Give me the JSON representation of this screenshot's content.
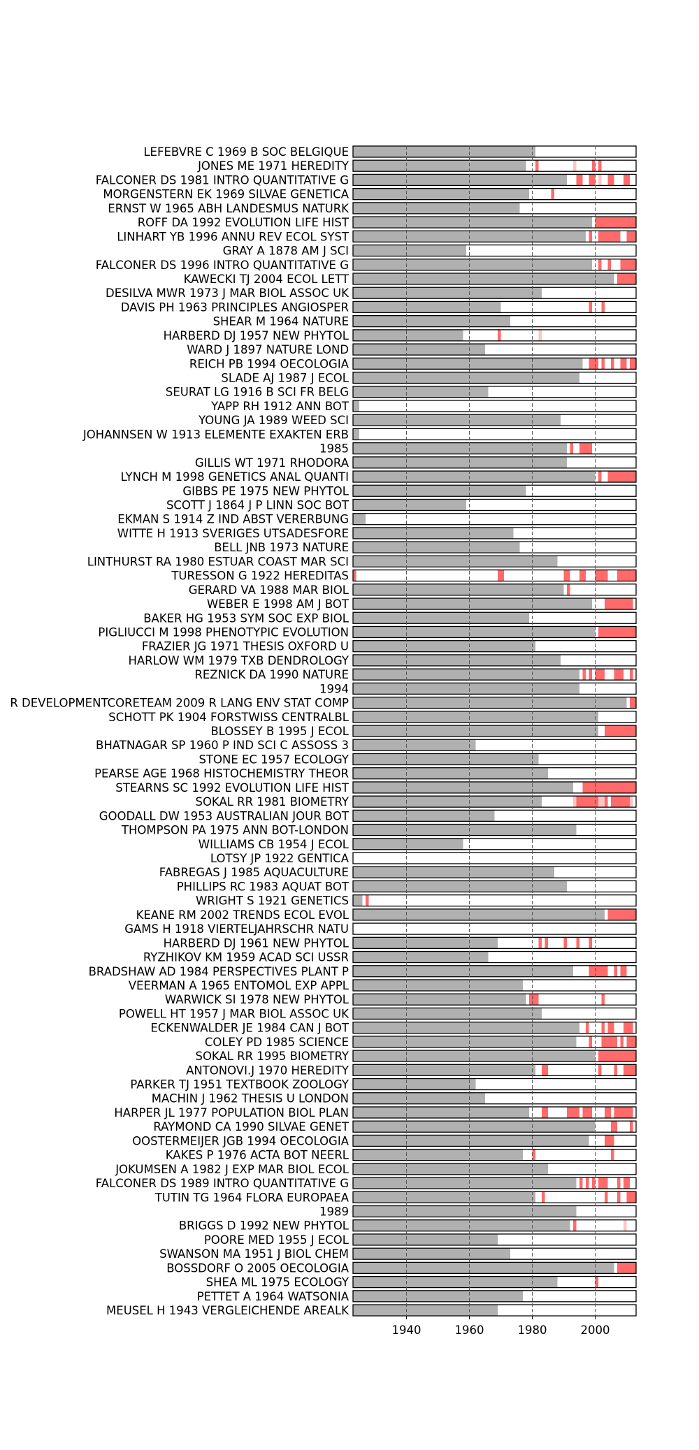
{
  "chart_data": {
    "type": "bar",
    "xlim": [
      1923,
      2013
    ],
    "x_ticks": [
      1940,
      1960,
      1980,
      2000
    ],
    "x_tick_labels": [
      "1940",
      "1960",
      "1980",
      "2000"
    ],
    "colors": {
      "span": "#b0b0b0",
      "burst_strong": "#ff6a6a",
      "burst_faint": "#ffc4c4",
      "frame": "#000000",
      "gridline": "#555555"
    },
    "rows": [
      {
        "label": "LEFEBVRE C 1969 B SOC BELGIQUE",
        "span_end": 1981,
        "strong": [],
        "faint": []
      },
      {
        "label": "JONES ME 1971 HEREDITY",
        "span_end": 1978,
        "strong": [
          [
            1981,
            1982
          ],
          [
            1999,
            2000
          ],
          [
            2001,
            2002
          ]
        ],
        "faint": [
          [
            1993,
            1994
          ]
        ]
      },
      {
        "label": "FALCONER DS 1981 INTRO QUANTITATIVE G",
        "span_end": 1991,
        "strong": [
          [
            1994,
            1996
          ],
          [
            1998,
            2000
          ],
          [
            2004,
            2006
          ],
          [
            2009,
            2011
          ]
        ],
        "faint": [
          [
            2001,
            2002
          ]
        ]
      },
      {
        "label": "MORGENSTERN EK 1969 SILVAE GENETICA",
        "span_end": 1979,
        "strong": [
          [
            1986,
            1987
          ]
        ],
        "faint": []
      },
      {
        "label": "ERNST W 1965 ABH LANDESMUS NATURK",
        "span_end": 1976,
        "strong": [],
        "faint": []
      },
      {
        "label": "ROFF DA 1992 EVOLUTION LIFE HIST",
        "span_end": 1999,
        "strong": [
          [
            2000,
            2013
          ]
        ],
        "faint": []
      },
      {
        "label": "LINHART YB 1996 ANNU REV ECOL SYST",
        "span_end": 1997,
        "strong": [
          [
            1998,
            1999
          ],
          [
            2001,
            2008
          ],
          [
            2010,
            2013
          ]
        ],
        "faint": []
      },
      {
        "label": "GRAY A 1878 AM J SCI",
        "span_end": 1959,
        "strong": [],
        "faint": []
      },
      {
        "label": "FALCONER DS 1996 INTRO QUANTITATIVE G",
        "span_end": 1999,
        "strong": [
          [
            2001,
            2002
          ],
          [
            2004,
            2005
          ],
          [
            2008,
            2013
          ]
        ],
        "faint": []
      },
      {
        "label": "KAWECKI TJ 2004 ECOL LETT",
        "span_end": 2006,
        "strong": [
          [
            2007,
            2013
          ]
        ],
        "faint": []
      },
      {
        "label": "DESILVA MWR 1973 J MAR BIOL ASSOC UK",
        "span_end": 1983,
        "strong": [],
        "faint": []
      },
      {
        "label": "DAVIS PH 1963 PRINCIPLES ANGIOSPER",
        "span_end": 1970,
        "strong": [
          [
            1998,
            1999
          ],
          [
            2002,
            2003
          ]
        ],
        "faint": []
      },
      {
        "label": "SHEAR M 1964 NATURE",
        "span_end": 1973,
        "strong": [],
        "faint": []
      },
      {
        "label": "HARBERD DJ 1957 NEW PHYTOL",
        "span_end": 1958,
        "strong": [
          [
            1969,
            1970
          ]
        ],
        "faint": [
          [
            1982,
            1983
          ]
        ]
      },
      {
        "label": "WARD J 1897 NATURE LOND",
        "span_end": 1965,
        "strong": [],
        "faint": []
      },
      {
        "label": "REICH PB 1994 OECOLOGIA",
        "span_end": 1996,
        "strong": [
          [
            1998,
            2001
          ],
          [
            2002,
            2003
          ],
          [
            2005,
            2006
          ],
          [
            2008,
            2010
          ],
          [
            2011,
            2013
          ]
        ],
        "faint": []
      },
      {
        "label": "SLADE AJ 1987 J ECOL",
        "span_end": 1995,
        "strong": [],
        "faint": []
      },
      {
        "label": "SEURAT LG 1916 B SCI FR BELG",
        "span_end": 1966,
        "strong": [],
        "faint": []
      },
      {
        "label": "YAPP RH 1912 ANN BOT",
        "span_end": 1925,
        "strong": [],
        "faint": []
      },
      {
        "label": "YOUNG JA 1989 WEED SCI",
        "span_end": 1989,
        "strong": [],
        "faint": []
      },
      {
        "label": "JOHANNSEN W 1913 ELEMENTE EXAKTEN ERB",
        "span_end": 1925,
        "strong": [],
        "faint": []
      },
      {
        "label": "1985",
        "span_end": 1991,
        "strong": [
          [
            1992,
            1993
          ],
          [
            1995,
            1999
          ]
        ],
        "faint": []
      },
      {
        "label": "GILLIS WT 1971 RHODORA",
        "span_end": 1991,
        "strong": [],
        "faint": []
      },
      {
        "label": "LYNCH M 1998 GENETICS ANAL QUANTI",
        "span_end": 2000,
        "strong": [
          [
            2001,
            2002
          ],
          [
            2004,
            2013
          ]
        ],
        "faint": []
      },
      {
        "label": "GIBBS PE 1975 NEW PHYTOL",
        "span_end": 1978,
        "strong": [],
        "faint": []
      },
      {
        "label": "SCOTT J 1864 J P LINN SOC BOT",
        "span_end": 1959,
        "strong": [],
        "faint": []
      },
      {
        "label": "EKMAN S 1914 Z IND ABST VERERBUNG",
        "span_end": 1927,
        "strong": [],
        "faint": []
      },
      {
        "label": "WITTE H 1913 SVERIGES UTSADESFORE",
        "span_end": 1974,
        "strong": [],
        "faint": []
      },
      {
        "label": "BELL JNB 1973 NATURE",
        "span_end": 1976,
        "strong": [],
        "faint": []
      },
      {
        "label": "LINTHURST RA 1980 ESTUAR COAST MAR SCI",
        "span_end": 1988,
        "strong": [],
        "faint": []
      },
      {
        "label": "TURESSON G 1922 HEREDITAS",
        "span_end": 1923,
        "strong": [
          [
            1923,
            1924
          ],
          [
            1969,
            1971
          ],
          [
            1990,
            1992
          ],
          [
            1995,
            1997
          ],
          [
            2000,
            2004
          ],
          [
            2007,
            2013
          ]
        ],
        "faint": []
      },
      {
        "label": "GERARD VA 1988 MAR BIOL",
        "span_end": 1990,
        "strong": [
          [
            1991,
            1992
          ]
        ],
        "faint": []
      },
      {
        "label": "WEBER E 1998 AM J BOT",
        "span_end": 1999,
        "strong": [
          [
            2003,
            2012
          ]
        ],
        "faint": []
      },
      {
        "label": "BAKER HG 1953 SYM SOC EXP BIOL",
        "span_end": 1979,
        "strong": [],
        "faint": []
      },
      {
        "label": "PIGLIUCCI M 1998 PHENOTYPIC EVOLUTION",
        "span_end": 2000,
        "strong": [
          [
            2001,
            2013
          ]
        ],
        "faint": []
      },
      {
        "label": "FRAZIER JG 1971 THESIS OXFORD U",
        "span_end": 1981,
        "strong": [],
        "faint": []
      },
      {
        "label": "HARLOW WM 1979 TXB DENDROLOGY",
        "span_end": 1989,
        "strong": [],
        "faint": []
      },
      {
        "label": "REZNICK DA 1990 NATURE",
        "span_end": 1995,
        "strong": [
          [
            1996,
            1997
          ],
          [
            1998,
            1999
          ],
          [
            2000,
            2003
          ],
          [
            2006,
            2009
          ],
          [
            2011,
            2012
          ]
        ],
        "faint": []
      },
      {
        "label": "1994",
        "span_end": 1995,
        "strong": [],
        "faint": []
      },
      {
        "label": "R DEVELOPMENTCORETEAM 2009 R LANG ENV STAT COMP",
        "span_end": 2010,
        "strong": [
          [
            2011,
            2013
          ]
        ],
        "faint": []
      },
      {
        "label": "SCHOTT PK 1904 FORSTWISS CENTRALBL",
        "span_end": 2001,
        "strong": [],
        "faint": []
      },
      {
        "label": "BLOSSEY B 1995 J ECOL",
        "span_end": 2001,
        "strong": [
          [
            2003,
            2013
          ]
        ],
        "faint": []
      },
      {
        "label": "BHATNAGAR SP 1960 P IND SCI C ASSOSS 3",
        "span_end": 1962,
        "strong": [],
        "faint": []
      },
      {
        "label": "STONE EC 1957 ECOLOGY",
        "span_end": 1982,
        "strong": [],
        "faint": []
      },
      {
        "label": "PEARSE AGE 1968 HISTOCHEMISTRY THEOR",
        "span_end": 1985,
        "strong": [],
        "faint": []
      },
      {
        "label": "STEARNS SC 1992 EVOLUTION LIFE HIST",
        "span_end": 1993,
        "strong": [
          [
            1996,
            2013
          ]
        ],
        "faint": []
      },
      {
        "label": "SOKAL RR 1981 BIOMETRY",
        "span_end": 1983,
        "strong": [
          [
            1994,
            2001
          ],
          [
            2003,
            2004
          ],
          [
            2005,
            2011
          ]
        ],
        "faint": [
          [
            1993,
            1994
          ],
          [
            2001,
            2003
          ],
          [
            2011,
            2012
          ]
        ]
      },
      {
        "label": "GOODALL DW 1953 AUSTRALIAN JOUR BOT",
        "span_end": 1968,
        "strong": [],
        "faint": []
      },
      {
        "label": "THOMPSON PA 1975 ANN BOT-LONDON",
        "span_end": 1994,
        "strong": [],
        "faint": []
      },
      {
        "label": "WILLIAMS CB 1954 J ECOL",
        "span_end": 1958,
        "strong": [],
        "faint": []
      },
      {
        "label": "LOTSY JP 1922 GENTICA",
        "span_end": 1923,
        "strong": [],
        "faint": []
      },
      {
        "label": "FABREGAS J 1985 AQUACULTURE",
        "span_end": 1987,
        "strong": [],
        "faint": []
      },
      {
        "label": "PHILLIPS RC 1983 AQUAT BOT",
        "span_end": 1991,
        "strong": [],
        "faint": []
      },
      {
        "label": "WRIGHT S 1921 GENETICS",
        "span_end": 1926,
        "strong": [
          [
            1927,
            1928
          ]
        ],
        "faint": []
      },
      {
        "label": "KEANE RM 2002 TRENDS ECOL EVOL",
        "span_end": 2003,
        "strong": [
          [
            2004,
            2013
          ]
        ],
        "faint": []
      },
      {
        "label": "GAMS H 1918 VIERTELJAHRSCHR NATU",
        "span_end": 1923,
        "strong": [],
        "faint": []
      },
      {
        "label": "HARBERD DJ 1961 NEW PHYTOL",
        "span_end": 1969,
        "strong": [
          [
            1982,
            1983
          ],
          [
            1984,
            1985
          ],
          [
            1990,
            1991
          ],
          [
            1994,
            1995
          ],
          [
            1998,
            1999
          ]
        ],
        "faint": []
      },
      {
        "label": "RYZHIKOV KM 1959 ACAD SCI USSR",
        "span_end": 1966,
        "strong": [],
        "faint": []
      },
      {
        "label": "BRADSHAW AD 1984 PERSPECTIVES PLANT P",
        "span_end": 1993,
        "strong": [
          [
            1998,
            2004
          ],
          [
            2006,
            2007
          ],
          [
            2008,
            2010
          ]
        ],
        "faint": []
      },
      {
        "label": "VEERMAN A 1965 ENTOMOL EXP APPL",
        "span_end": 1977,
        "strong": [],
        "faint": []
      },
      {
        "label": "WARWICK SI 1978 NEW PHYTOL",
        "span_end": 1978,
        "strong": [
          [
            1979,
            1982
          ],
          [
            2002,
            2003
          ]
        ],
        "faint": []
      },
      {
        "label": "POWELL HT 1957 J MAR BIOL ASSOC UK",
        "span_end": 1983,
        "strong": [],
        "faint": []
      },
      {
        "label": "ECKENWALDER JE 1984 CAN J BOT",
        "span_end": 1995,
        "strong": [
          [
            1997,
            1998
          ],
          [
            2002,
            2003
          ],
          [
            2004,
            2006
          ],
          [
            2009,
            2012
          ]
        ],
        "faint": []
      },
      {
        "label": "COLEY PD 1985 SCIENCE",
        "span_end": 1994,
        "strong": [
          [
            1998,
            1999
          ],
          [
            2002,
            2007
          ],
          [
            2008,
            2009
          ],
          [
            2010,
            2013
          ]
        ],
        "faint": []
      },
      {
        "label": "SOKAL RR 1995 BIOMETRY",
        "span_end": 2000,
        "strong": [
          [
            2001,
            2013
          ]
        ],
        "faint": []
      },
      {
        "label": "ANTONOVI.J   1970 HEREDITY",
        "span_end": 1981,
        "strong": [
          [
            1983,
            1985
          ],
          [
            2001,
            2002
          ],
          [
            2006,
            2007
          ],
          [
            2009,
            2013
          ]
        ],
        "faint": []
      },
      {
        "label": "PARKER TJ 1951 TEXTBOOK ZOOLOGY",
        "span_end": 1962,
        "strong": [],
        "faint": []
      },
      {
        "label": "MACHIN J 1962 THESIS U LONDON",
        "span_end": 1965,
        "strong": [],
        "faint": []
      },
      {
        "label": "HARPER JL 1977 POPULATION BIOL PLAN",
        "span_end": 1979,
        "strong": [
          [
            1983,
            1985
          ],
          [
            1991,
            1995
          ],
          [
            1996,
            1999
          ],
          [
            2003,
            2005
          ],
          [
            2006,
            2012
          ]
        ],
        "faint": []
      },
      {
        "label": "RAYMOND CA 1990 SILVAE GENET",
        "span_end": 2000,
        "strong": [
          [
            2005,
            2007
          ],
          [
            2011,
            2012
          ]
        ],
        "faint": []
      },
      {
        "label": "OOSTERMEIJER JGB 1994 OECOLOGIA",
        "span_end": 1998,
        "strong": [
          [
            2003,
            2006
          ]
        ],
        "faint": []
      },
      {
        "label": "KAKES P 1976 ACTA BOT NEERL",
        "span_end": 1977,
        "strong": [
          [
            1980,
            1981
          ],
          [
            2005,
            2006
          ]
        ],
        "faint": []
      },
      {
        "label": "JOKUMSEN A 1982 J EXP MAR BIOL ECOL",
        "span_end": 1985,
        "strong": [],
        "faint": []
      },
      {
        "label": "FALCONER DS 1989 INTRO QUANTITATIVE G",
        "span_end": 1994,
        "strong": [
          [
            1995,
            1996
          ],
          [
            1997,
            1998
          ],
          [
            1999,
            2000
          ],
          [
            2001,
            2004
          ],
          [
            2007,
            2008
          ],
          [
            2009,
            2011
          ]
        ],
        "faint": []
      },
      {
        "label": "TUTIN TG 1964 FLORA EUROPAEA",
        "span_end": 1981,
        "strong": [
          [
            1983,
            1984
          ],
          [
            2003,
            2004
          ],
          [
            2007,
            2008
          ],
          [
            2010,
            2013
          ]
        ],
        "faint": []
      },
      {
        "label": "1989",
        "span_end": 1994,
        "strong": [],
        "faint": []
      },
      {
        "label": "BRIGGS D 1992 NEW PHYTOL",
        "span_end": 1992,
        "strong": [
          [
            1993,
            1994
          ]
        ],
        "faint": [
          [
            2009,
            2010
          ]
        ]
      },
      {
        "label": "POORE MED 1955 J ECOL",
        "span_end": 1969,
        "strong": [],
        "faint": []
      },
      {
        "label": "SWANSON MA 1951 J BIOL CHEM",
        "span_end": 1973,
        "strong": [],
        "faint": []
      },
      {
        "label": "BOSSDORF O 2005 OECOLOGIA",
        "span_end": 2006,
        "strong": [
          [
            2007,
            2013
          ]
        ],
        "faint": []
      },
      {
        "label": "SHEA ML 1975 ECOLOGY",
        "span_end": 1988,
        "strong": [
          [
            2000,
            2001
          ]
        ],
        "faint": []
      },
      {
        "label": "PETTET A 1964 WATSONIA",
        "span_end": 1977,
        "strong": [],
        "faint": []
      },
      {
        "label": "MEUSEL H 1943 VERGLEICHENDE AREALK",
        "span_end": 1969,
        "strong": [],
        "faint": []
      }
    ]
  }
}
